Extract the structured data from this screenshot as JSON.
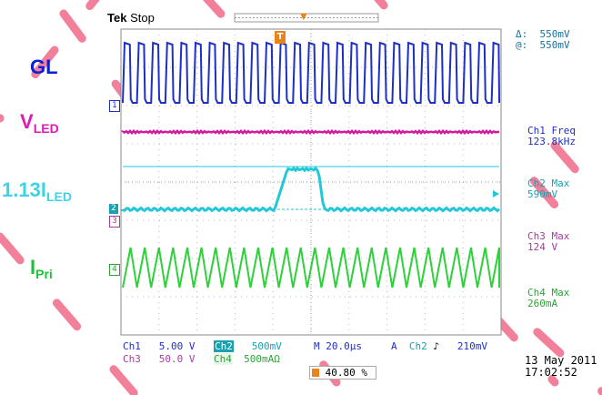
{
  "colors": {
    "ch1": "#1e2fc7",
    "ch2": "#22c8d8",
    "ch3": "#d11aa0",
    "ch4": "#2ed13a",
    "watermark": "#f06a8a",
    "gl_label": "#0b1fd6",
    "vled_label": "#e01ab5",
    "iled_label": "#3fd3e6",
    "ipri_label": "#19c43a"
  },
  "header": {
    "brand": "Tek",
    "state": "Stop",
    "trigger_marker": "T"
  },
  "side_labels": {
    "gl": "GL",
    "vled_main": "V",
    "vled_sub": "LED",
    "iled_main": "1.13I",
    "iled_sub": "LED",
    "ipri_main": "I",
    "ipri_sub": "Pri"
  },
  "channel_markers": {
    "ch1": "1",
    "ch2": "2",
    "ch3": "3",
    "ch4": "4"
  },
  "cursor_readout": {
    "delta_symbol": "Δ:",
    "delta_value": "550mV",
    "at_symbol": "@:",
    "at_value": "550mV"
  },
  "measurements": [
    {
      "label": "Ch1 Freq",
      "value": "123.8kHz"
    },
    {
      "label": "Ch2 Max",
      "value": "590mV"
    },
    {
      "label": "Ch3 Max",
      "value": "124 V"
    },
    {
      "label": "Ch4 Max",
      "value": "260mA"
    }
  ],
  "status_bar": {
    "ch1_name": "Ch1",
    "ch1_scale": "5.00 V",
    "ch2_name": "Ch2",
    "ch2_scale": "500mV",
    "ch3_name": "Ch3",
    "ch3_scale": "50.0 V",
    "ch4_name": "Ch4",
    "ch4_scale": "500mA",
    "ch4_suffix": "Ω",
    "timebase": "M 20.0µs",
    "trigger_mode": "A",
    "trigger_source": "Ch2",
    "trigger_slope": "♪",
    "trigger_level": "210mV",
    "position": "40.80 %"
  },
  "timestamp": {
    "date": "13 May 2011",
    "time": "17:02:52"
  }
}
